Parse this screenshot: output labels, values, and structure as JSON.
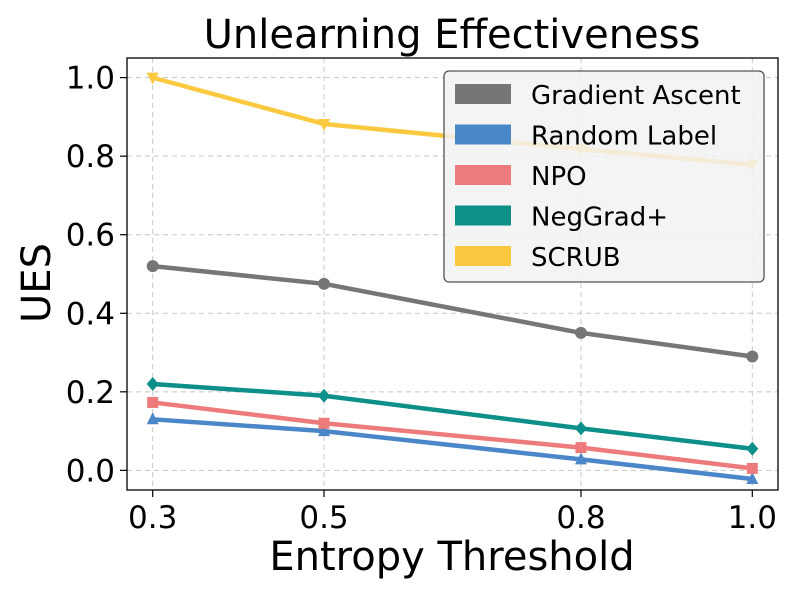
{
  "chart_data": {
    "type": "line",
    "title": "Unlearning Effectiveness",
    "xlabel": "Entropy Threshold",
    "ylabel": "UES",
    "x": [
      0.3,
      0.5,
      0.8,
      1.0
    ],
    "x_tick_labels": [
      "0.3",
      "0.5",
      "0.8",
      "1.0"
    ],
    "xlim": [
      0.27,
      1.03
    ],
    "ylim": [
      -0.05,
      1.05
    ],
    "y_ticks": [
      0.0,
      0.2,
      0.4,
      0.6,
      0.8,
      1.0
    ],
    "y_tick_labels": [
      "0.0",
      "0.2",
      "0.4",
      "0.6",
      "0.8",
      "1.0"
    ],
    "grid": true,
    "legend_position": "top-right",
    "series": [
      {
        "name": "Gradient Ascent",
        "color": "#767676",
        "marker": "circle",
        "values": [
          0.52,
          0.475,
          0.35,
          0.29
        ]
      },
      {
        "name": "Random Label",
        "color": "#4a86c8",
        "marker": "triangle-up",
        "values": [
          0.13,
          0.1,
          0.028,
          -0.022
        ]
      },
      {
        "name": "NPO",
        "color": "#ee7b7b",
        "marker": "square",
        "values": [
          0.173,
          0.12,
          0.058,
          0.005
        ]
      },
      {
        "name": "NegGrad+",
        "color": "#0d8f8a",
        "marker": "diamond",
        "values": [
          0.22,
          0.19,
          0.107,
          0.055
        ]
      },
      {
        "name": "SCRUB",
        "color": "#fbc93f",
        "marker": "triangle-down",
        "values": [
          1.0,
          0.882,
          0.818,
          0.778
        ]
      }
    ]
  }
}
